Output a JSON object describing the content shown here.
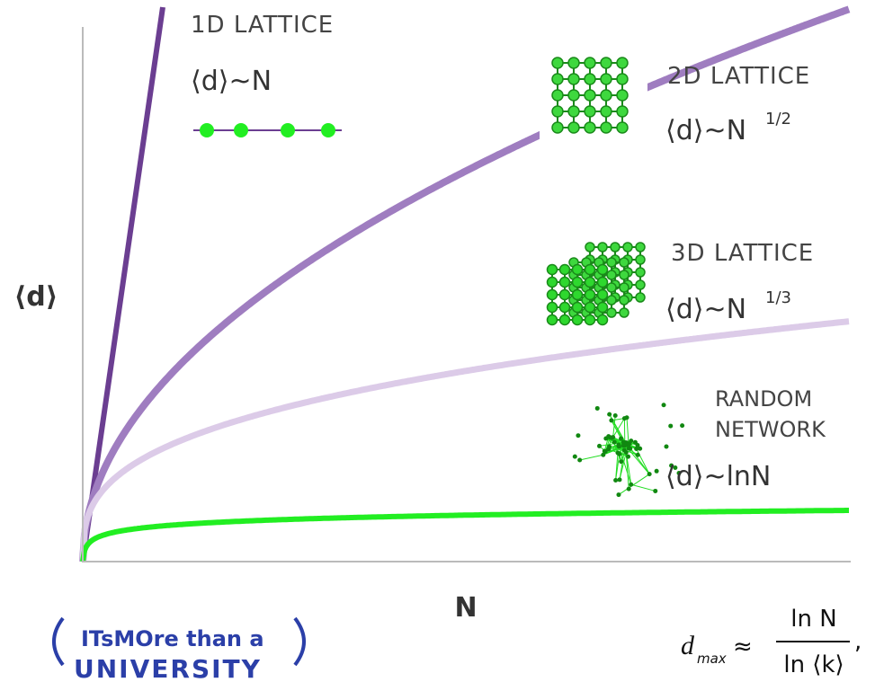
{
  "axes": {
    "y_label": "⟨d⟩",
    "x_label": "N"
  },
  "lattice_1d": {
    "title": "1D LATTICE",
    "formula": "⟨d⟩~N"
  },
  "lattice_2d": {
    "title": "2D LATTICE",
    "formula": "⟨d⟩~N",
    "exponent": "1/2"
  },
  "lattice_3d": {
    "title": "3D LATTICE",
    "formula": "⟨d⟩~N",
    "exponent": "1/3"
  },
  "random_network": {
    "title_line1": "RANDOM",
    "title_line2": "NETWORK",
    "formula": "⟨d⟩~lnN"
  },
  "logo": {
    "line1": "ITsMOre than a",
    "line2": "UNIVERSITY"
  },
  "equation": {
    "lhs": "d",
    "lhs_sub": "max",
    "approx": "≈",
    "numerator": "ln N",
    "denominator": "ln ⟨k⟩",
    "comma": ","
  }
}
